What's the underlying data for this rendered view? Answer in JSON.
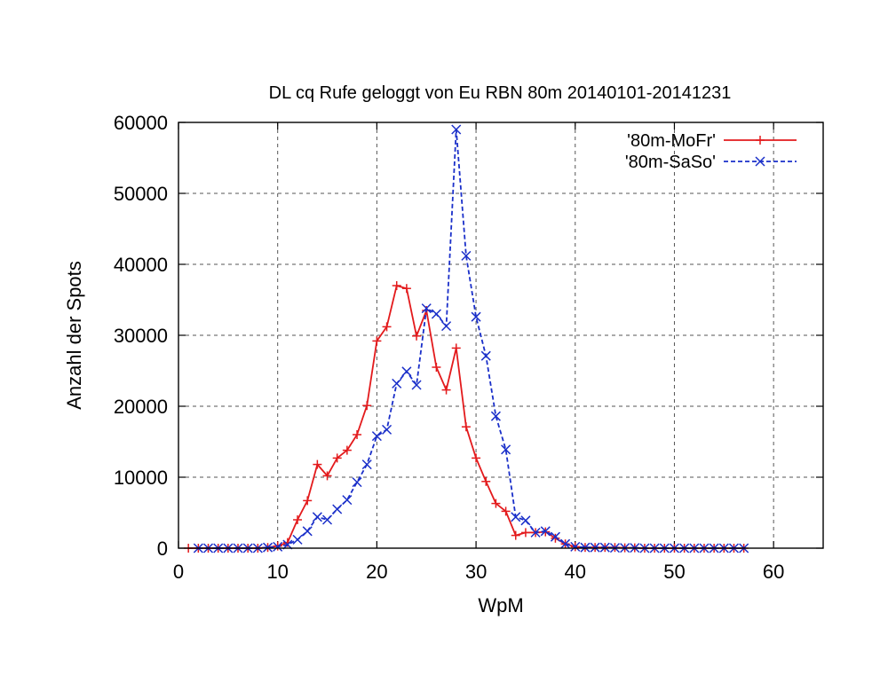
{
  "chart_data": {
    "type": "line",
    "title": "DL cq Rufe geloggt von Eu RBN 80m 20140101-20141231",
    "xlabel": "WpM",
    "ylabel": "Anzahl der Spots",
    "xlim": [
      0,
      65
    ],
    "ylim": [
      0,
      60000
    ],
    "xticks": [
      0,
      10,
      20,
      30,
      40,
      50,
      60
    ],
    "yticks": [
      0,
      10000,
      20000,
      30000,
      40000,
      50000,
      60000
    ],
    "xtick_labels": [
      "0",
      "10",
      "20",
      "30",
      "40",
      "50",
      "60"
    ],
    "ytick_labels": [
      "0",
      "10000",
      "20000",
      "30000",
      "40000",
      "50000",
      "60000"
    ],
    "grid": true,
    "legend_position": "top-right",
    "series": [
      {
        "name": "'80m-MoFr'",
        "color": "#e31a1c",
        "marker": "plus",
        "dash": "solid",
        "x": [
          1,
          2,
          3,
          4,
          5,
          6,
          7,
          8,
          9,
          10,
          11,
          12,
          13,
          14,
          15,
          16,
          17,
          18,
          19,
          20,
          21,
          22,
          23,
          24,
          25,
          26,
          27,
          28,
          29,
          30,
          31,
          32,
          33,
          34,
          35,
          36,
          37,
          38,
          39,
          40,
          41,
          42,
          43,
          44,
          45,
          46,
          47,
          48,
          49,
          50,
          51,
          52,
          53,
          54,
          55,
          56,
          57
        ],
        "y": [
          0,
          0,
          0,
          0,
          0,
          0,
          0,
          0,
          100,
          300,
          800,
          4000,
          6700,
          11800,
          10200,
          12700,
          13800,
          16000,
          20100,
          29200,
          31200,
          37000,
          36600,
          29900,
          33500,
          25500,
          22300,
          28200,
          17100,
          12700,
          9400,
          6300,
          5200,
          1800,
          2200,
          2200,
          2300,
          1400,
          600,
          200,
          100,
          100,
          100,
          100,
          50,
          50,
          0,
          0,
          0,
          0,
          0,
          0,
          0,
          0,
          0,
          0,
          0
        ]
      },
      {
        "name": "'80m-SaSo'",
        "color": "#1a2fc9",
        "marker": "x",
        "dash": "dashed",
        "x": [
          2,
          3,
          4,
          5,
          6,
          7,
          8,
          9,
          10,
          11,
          12,
          13,
          14,
          15,
          16,
          17,
          18,
          19,
          20,
          21,
          22,
          23,
          24,
          25,
          26,
          27,
          28,
          29,
          30,
          31,
          32,
          33,
          34,
          35,
          36,
          37,
          38,
          39,
          40,
          41,
          42,
          43,
          44,
          45,
          46,
          47,
          48,
          49,
          50,
          51,
          52,
          53,
          54,
          55,
          56,
          57
        ],
        "y": [
          0,
          0,
          0,
          0,
          0,
          0,
          0,
          100,
          200,
          500,
          1200,
          2400,
          4400,
          4000,
          5500,
          6800,
          9300,
          11800,
          15800,
          16700,
          23200,
          24900,
          23000,
          33800,
          33000,
          31300,
          59000,
          41200,
          32600,
          27100,
          18600,
          13900,
          4400,
          3900,
          2200,
          2400,
          1600,
          600,
          200,
          100,
          100,
          100,
          50,
          50,
          50,
          0,
          0,
          0,
          0,
          0,
          0,
          0,
          0,
          0,
          0,
          0
        ]
      }
    ]
  }
}
